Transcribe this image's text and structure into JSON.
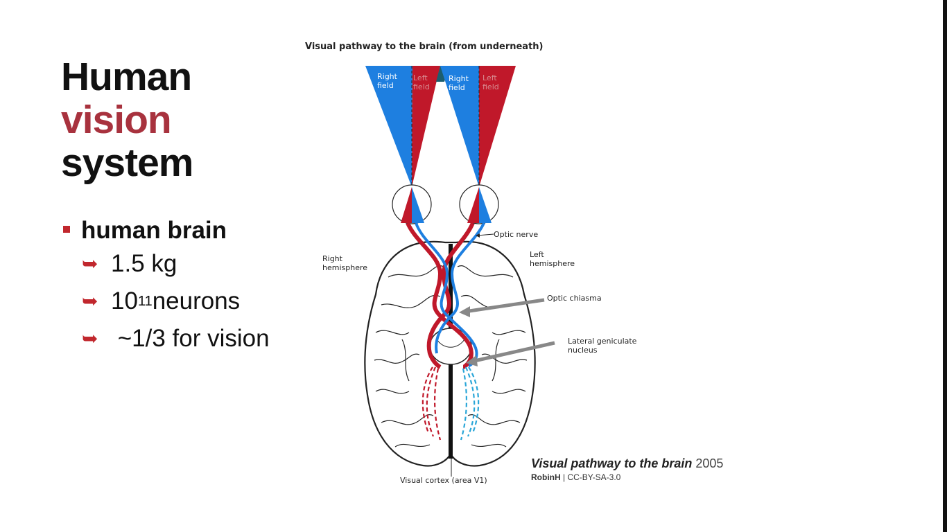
{
  "slide": {
    "title_line1": "Human",
    "title_line2": "vision",
    "title_line3": "system",
    "bullet": "human brain",
    "sub1": "1.5 kg",
    "sub2_base": "10",
    "sub2_exp": "11",
    "sub2_rest": " neurons",
    "sub3": " ~1/3 for vision"
  },
  "diagram": {
    "title": "Visual pathway to the brain (from underneath)",
    "fields": {
      "right_a": "Right field",
      "left_a": "Left field",
      "right_b": "Right field",
      "left_b": "Left field"
    },
    "labels": {
      "optic_nerve": "Optic nerve",
      "right_hemisphere": "Right hemisphere",
      "left_hemisphere": "Left hemisphere",
      "optic_chiasma": "Optic chiasma",
      "lgn": "Lateral geniculate nucleus",
      "visual_cortex": "Visual cortex (area V1)"
    }
  },
  "credit": {
    "title": "Visual pathway to the brain",
    "year": " 2005",
    "author": "RobinH",
    "license": " | CC-BY-SA-3.0"
  },
  "colors": {
    "accent": "#a8323e",
    "bullet_red": "#c1272d",
    "blue": "#1e7fe0",
    "red": "#c0182a"
  }
}
